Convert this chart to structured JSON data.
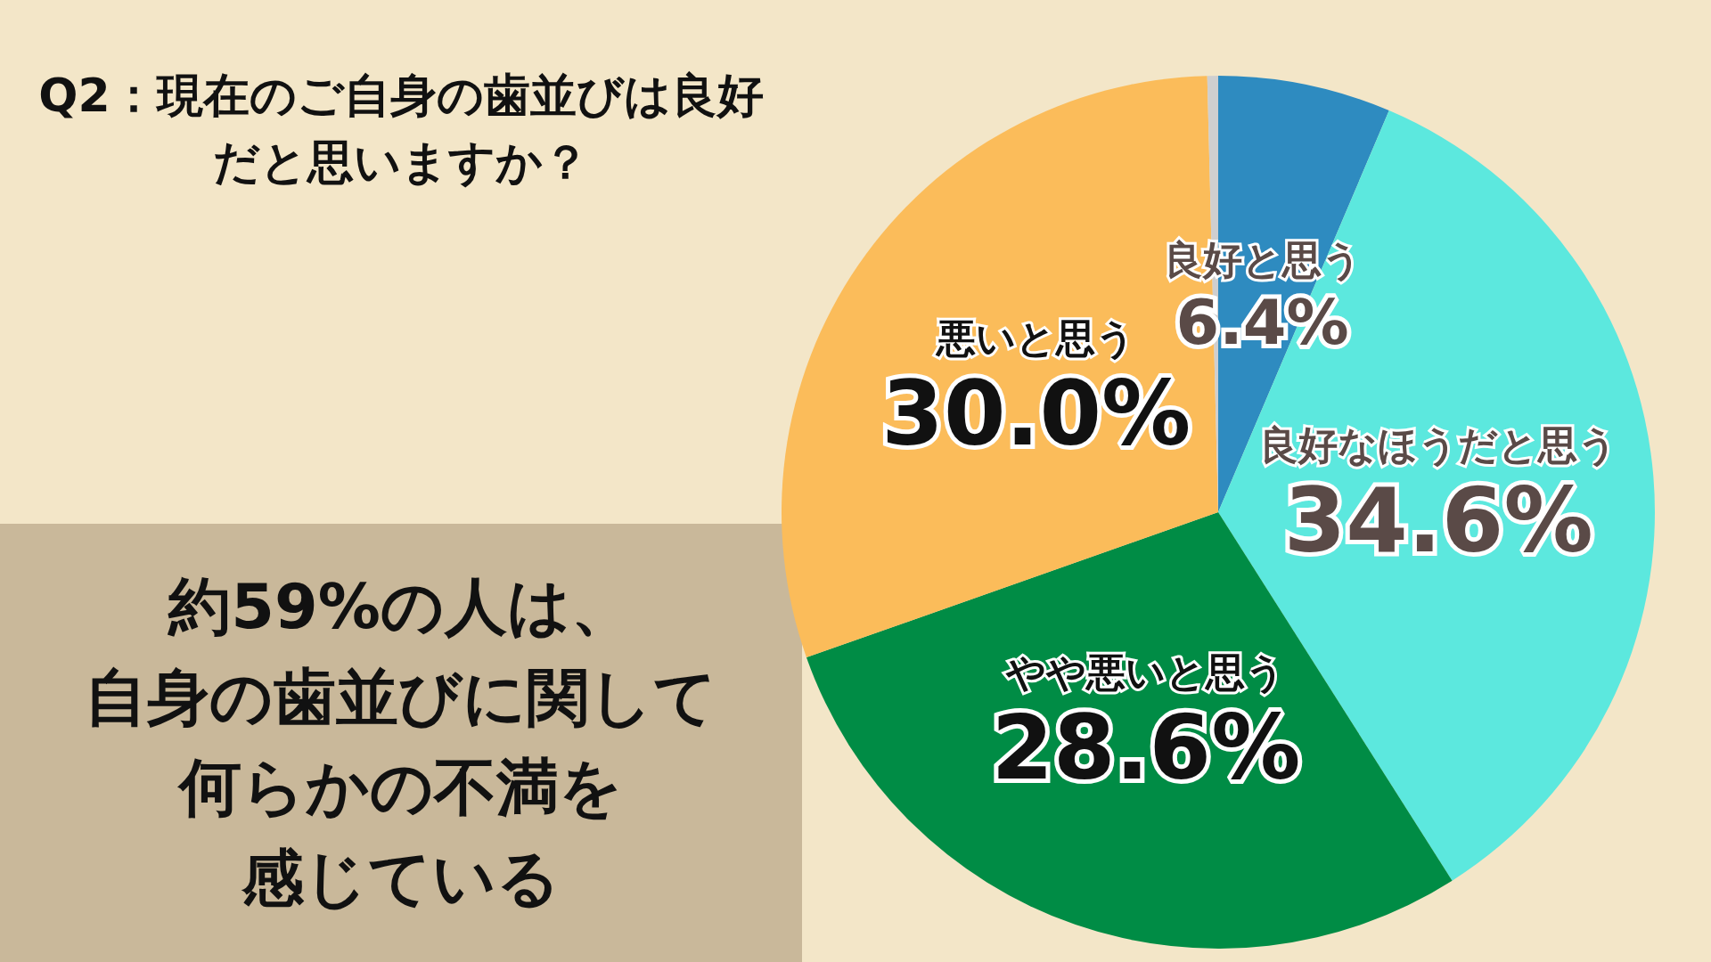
{
  "chart_data": {
    "type": "pie",
    "title": "Q2：現在のご自身の歯並びは良好だと思いますか？",
    "categories": [
      "良好と思う",
      "良好なほうだと思う",
      "やや悪いと思う",
      "悪いと思う",
      null
    ],
    "values": [
      6.4,
      34.6,
      28.6,
      30.0,
      0.4
    ],
    "value_labels": [
      "6.4%",
      "34.6%",
      "28.6%",
      "30.0%",
      null
    ],
    "colors": [
      "#2e8bc0",
      "#5ce8de",
      "#008c45",
      "#fbbc5a",
      "#cfcfcf"
    ],
    "annotations": [
      "約59%の人は、",
      "自身の歯並びに関して",
      "何らかの不満を",
      "感じている"
    ],
    "legend": false
  }
}
